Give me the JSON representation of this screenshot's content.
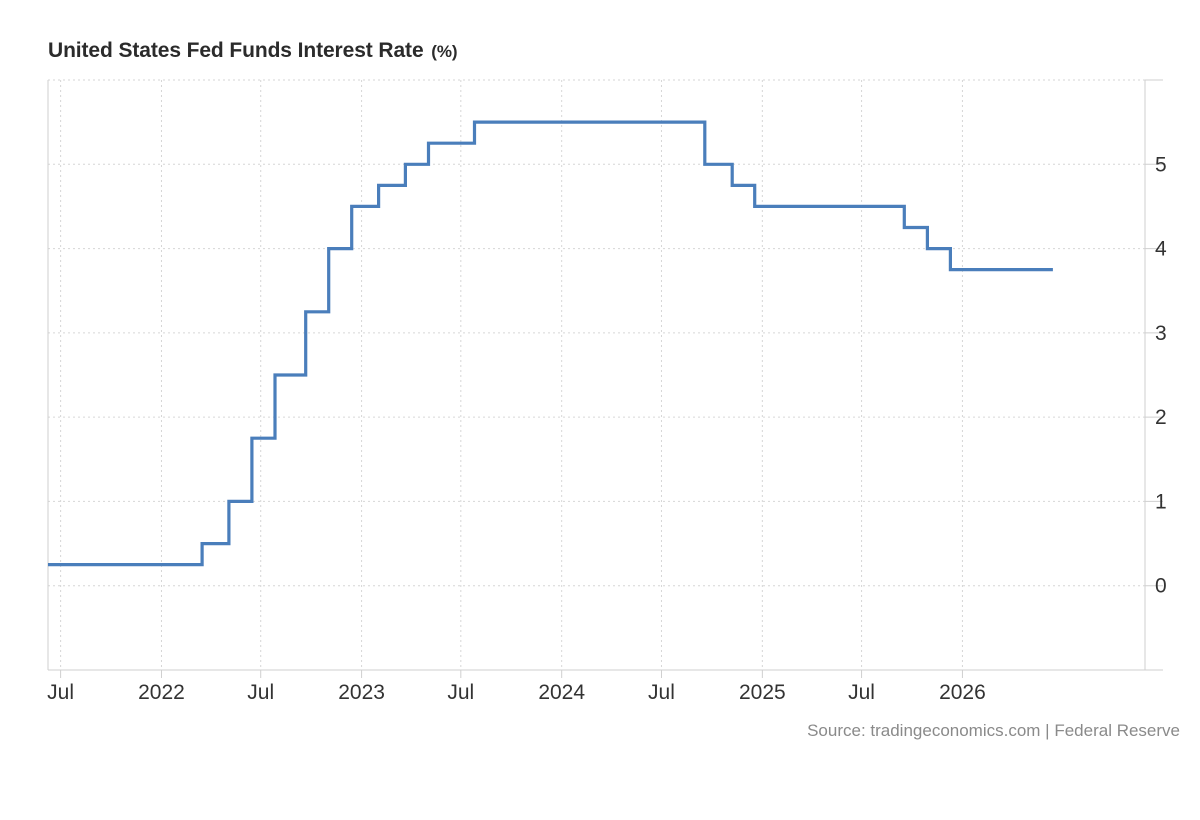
{
  "chart_data": {
    "type": "line",
    "step": true,
    "title": "United States Fed Funds Interest Rate",
    "unit": "(%)",
    "source": "Source: tradingeconomics.com | Federal Reserve",
    "xlabel": "",
    "ylabel": "",
    "ylim": [
      -1,
      6
    ],
    "xlim": [
      "2021-06-08",
      "2026-11-30"
    ],
    "yticks": [
      0,
      1,
      2,
      3,
      4,
      5
    ],
    "xticks": [
      {
        "date": "2021-07-01",
        "label": "Jul"
      },
      {
        "date": "2022-01-01",
        "label": "2022"
      },
      {
        "date": "2022-07-01",
        "label": "Jul"
      },
      {
        "date": "2023-01-01",
        "label": "2023"
      },
      {
        "date": "2023-07-01",
        "label": "Jul"
      },
      {
        "date": "2024-01-01",
        "label": "2024"
      },
      {
        "date": "2024-07-01",
        "label": "Jul"
      },
      {
        "date": "2025-01-01",
        "label": "2025"
      },
      {
        "date": "2025-07-01",
        "label": "Jul"
      },
      {
        "date": "2026-01-01",
        "label": "2026"
      }
    ],
    "grid": true,
    "y_axis_position": "right",
    "line_color": "#4a7ebb",
    "series": [
      {
        "points": [
          {
            "x": "2021-06-08",
            "y": 0.25
          },
          {
            "x": "2022-03-16",
            "y": 0.5
          },
          {
            "x": "2022-05-04",
            "y": 1.0
          },
          {
            "x": "2022-06-15",
            "y": 1.75
          },
          {
            "x": "2022-07-27",
            "y": 2.5
          },
          {
            "x": "2022-09-21",
            "y": 3.25
          },
          {
            "x": "2022-11-02",
            "y": 4.0
          },
          {
            "x": "2022-12-14",
            "y": 4.5
          },
          {
            "x": "2023-02-01",
            "y": 4.75
          },
          {
            "x": "2023-03-22",
            "y": 5.0
          },
          {
            "x": "2023-05-03",
            "y": 5.25
          },
          {
            "x": "2023-07-26",
            "y": 5.5
          },
          {
            "x": "2024-09-18",
            "y": 5.0
          },
          {
            "x": "2024-11-07",
            "y": 4.75
          },
          {
            "x": "2024-12-18",
            "y": 4.5
          },
          {
            "x": "2025-09-17",
            "y": 4.25
          },
          {
            "x": "2025-10-29",
            "y": 4.0
          },
          {
            "x": "2025-12-10",
            "y": 3.75
          },
          {
            "x": "2026-06-15",
            "y": 3.75
          }
        ]
      }
    ]
  }
}
